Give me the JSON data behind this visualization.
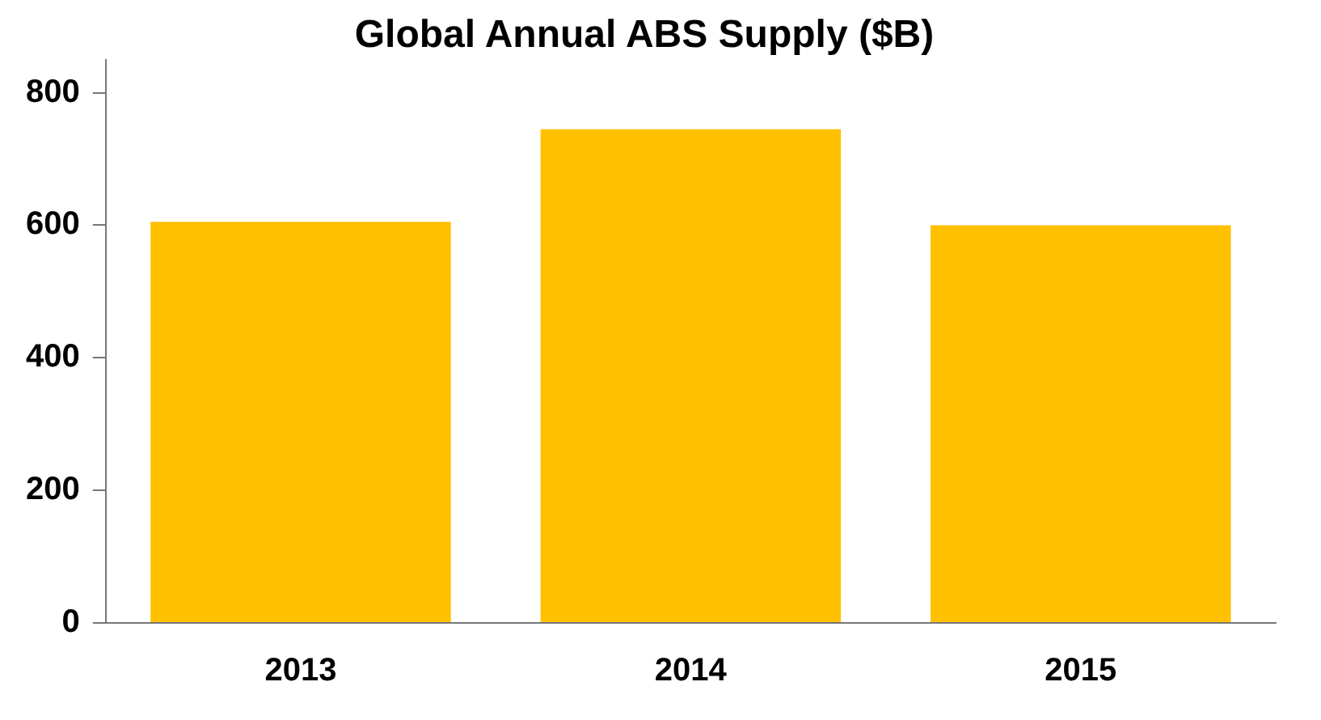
{
  "chart_data": {
    "type": "bar",
    "title": "Global Annual ABS Supply ($B)",
    "categories": [
      "2013",
      "2014",
      "2015"
    ],
    "values": [
      605,
      745,
      600
    ],
    "color": "#ffc000",
    "ylim": [
      0,
      850
    ],
    "yticks": [
      0,
      200,
      400,
      600,
      800
    ],
    "grid": false,
    "legend": false
  }
}
